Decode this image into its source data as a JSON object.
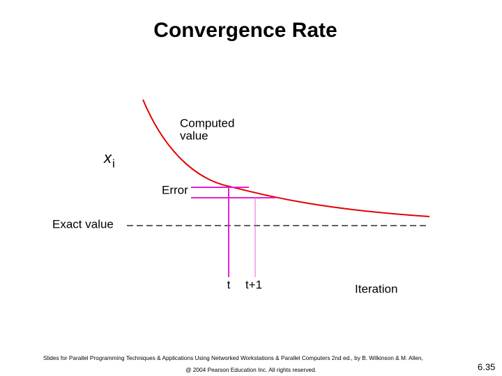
{
  "title": "Convergence Rate",
  "labels": {
    "computed_value": [
      "Computed",
      "value"
    ],
    "symbol": {
      "base": "x",
      "subscript": "i"
    },
    "error": "Error",
    "exact_value": "Exact value",
    "t": "t",
    "t_plus_1": "t+1",
    "iteration": "Iteration"
  },
  "footer": {
    "credit": "Slides for Parallel Programming Techniques & Applications Using Networked Workstations & Parallel Computers 2nd ed., by B. Wilkinson & M. Allen,",
    "copyright": "@ 2004 Pearson Education Inc. All rights reserved.",
    "page_number": "6.35"
  }
}
